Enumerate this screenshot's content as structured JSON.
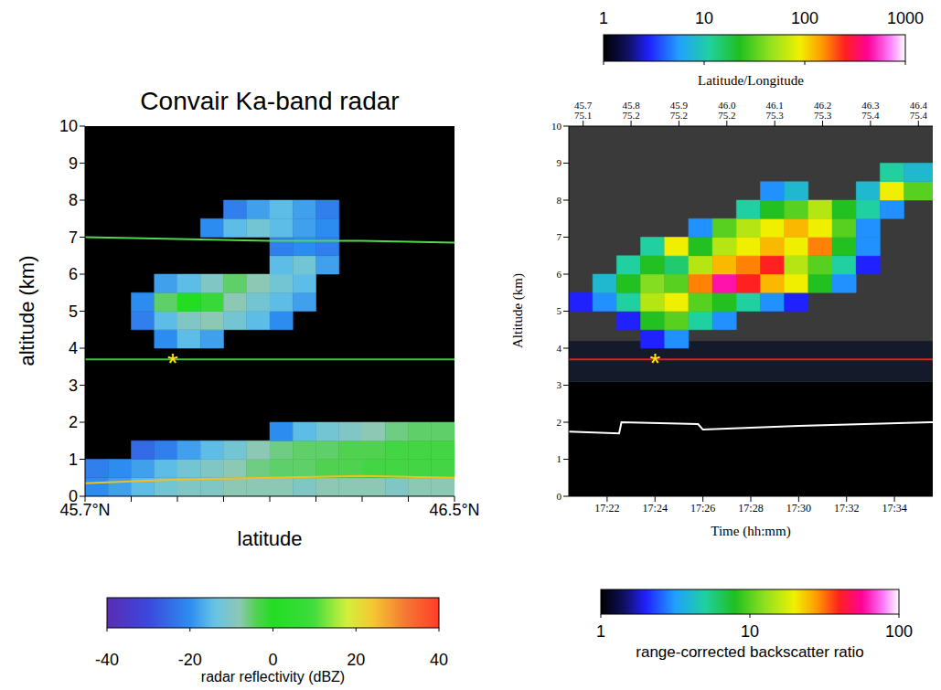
{
  "chart_data": [
    {
      "type": "heatmap",
      "title": "Convair Ka-band radar",
      "x_label": "latitude",
      "y_label": "altitude (km)",
      "xlim": [
        45.7,
        46.5
      ],
      "xticks": [
        {
          "value": 45.7,
          "label": "45.7°N"
        },
        {
          "value": 46.5,
          "label": "46.5°N"
        }
      ],
      "minor_xticks": [
        45.8,
        45.9,
        46.0,
        46.1,
        46.2,
        46.3,
        46.4
      ],
      "ylim": [
        0,
        10
      ],
      "yticks": [
        0,
        1,
        2,
        3,
        4,
        5,
        6,
        7,
        8,
        9,
        10
      ],
      "x_edges": [
        45.7,
        45.75,
        45.8,
        45.85,
        45.9,
        45.95,
        46.0,
        46.05,
        46.1,
        46.15,
        46.2,
        46.25,
        46.3,
        46.35,
        46.4,
        46.45,
        46.5
      ],
      "y_edges": [
        0,
        0.5,
        1,
        1.5,
        2,
        2.5,
        3,
        3.5,
        4,
        4.5,
        5,
        5.5,
        6,
        6.5,
        7,
        7.5,
        8,
        8.5,
        9,
        9.5,
        10
      ],
      "z": [
        [
          -20,
          -18,
          -15,
          -12,
          -10,
          -10,
          -8,
          -8,
          -8,
          -10,
          -8,
          -8,
          -8,
          -10,
          -8,
          -8
        ],
        [
          -22,
          -20,
          -18,
          -15,
          -12,
          -10,
          -8,
          -6,
          -5,
          -5,
          -4,
          -4,
          -3,
          -3,
          -3,
          -3
        ],
        [
          null,
          null,
          -25,
          -22,
          -18,
          -15,
          -12,
          -8,
          -6,
          -5,
          -5,
          -4,
          -4,
          -3,
          -3,
          -3
        ],
        [
          null,
          null,
          null,
          null,
          null,
          null,
          null,
          null,
          -20,
          -15,
          -12,
          -10,
          -8,
          -6,
          -5,
          -5
        ],
        [
          null,
          null,
          null,
          null,
          null,
          null,
          null,
          null,
          null,
          null,
          null,
          null,
          null,
          null,
          null,
          null
        ],
        [
          null,
          null,
          null,
          null,
          null,
          null,
          null,
          null,
          null,
          null,
          null,
          null,
          null,
          null,
          null,
          null
        ],
        [
          null,
          null,
          null,
          null,
          null,
          null,
          null,
          null,
          null,
          null,
          null,
          null,
          null,
          null,
          null,
          null
        ],
        [
          null,
          null,
          null,
          null,
          null,
          null,
          null,
          null,
          null,
          null,
          null,
          null,
          null,
          null,
          null,
          null
        ],
        [
          null,
          null,
          null,
          -20,
          -15,
          -18,
          null,
          null,
          null,
          null,
          null,
          null,
          null,
          null,
          null,
          null
        ],
        [
          null,
          null,
          -22,
          -15,
          -10,
          -8,
          -12,
          -15,
          -20,
          null,
          null,
          null,
          null,
          null,
          null,
          null
        ],
        [
          null,
          null,
          -20,
          -5,
          0,
          -2,
          -8,
          -12,
          -15,
          -18,
          null,
          null,
          null,
          null,
          null,
          null
        ],
        [
          null,
          null,
          null,
          -18,
          -15,
          -10,
          -5,
          -8,
          -12,
          -15,
          null,
          null,
          null,
          null,
          null,
          null
        ],
        [
          null,
          null,
          null,
          null,
          null,
          null,
          null,
          null,
          -15,
          -12,
          -18,
          null,
          null,
          null,
          null,
          null
        ],
        [
          null,
          null,
          null,
          null,
          null,
          null,
          null,
          null,
          -22,
          -20,
          -22,
          null,
          null,
          null,
          null,
          null
        ],
        [
          null,
          null,
          null,
          null,
          null,
          -20,
          -15,
          -12,
          -15,
          -18,
          -20,
          null,
          null,
          null,
          null,
          null
        ],
        [
          null,
          null,
          null,
          null,
          null,
          null,
          -22,
          -18,
          -15,
          -18,
          -22,
          null,
          null,
          null,
          null,
          null
        ],
        [
          null,
          null,
          null,
          null,
          null,
          null,
          null,
          null,
          null,
          null,
          null,
          null,
          null,
          null,
          null,
          null
        ],
        [
          null,
          null,
          null,
          null,
          null,
          null,
          null,
          null,
          null,
          null,
          null,
          null,
          null,
          null,
          null,
          null
        ],
        [
          null,
          null,
          null,
          null,
          null,
          null,
          null,
          null,
          null,
          null,
          null,
          null,
          null,
          null,
          null,
          null
        ],
        [
          null,
          null,
          null,
          null,
          null,
          null,
          null,
          null,
          null,
          null,
          null,
          null,
          null,
          null,
          null,
          null
        ]
      ],
      "colorbar": {
        "range": [
          -40,
          40
        ],
        "ticks": [
          -40,
          -20,
          0,
          20,
          40
        ],
        "label": "radar reflectivity (dBZ)"
      },
      "lines": [
        {
          "x": [
            45.7,
            46.5
          ],
          "y": [
            3.7,
            3.7
          ],
          "color": "#3cc83c"
        },
        {
          "x": [
            45.7,
            45.9,
            46.1,
            46.3,
            46.5
          ],
          "y": [
            7.0,
            6.95,
            6.9,
            6.9,
            6.85
          ],
          "color": "#50d850"
        },
        {
          "x": [
            45.7,
            45.9,
            46.1,
            46.3,
            46.5
          ],
          "y": [
            0.35,
            0.45,
            0.5,
            0.55,
            0.5
          ],
          "color": "#f0c020"
        }
      ],
      "annotations": [
        {
          "text": "*",
          "x": 45.89,
          "y": 3.65,
          "color": "#ffe600"
        }
      ]
    },
    {
      "type": "heatmap",
      "x_label": "Time (hh:mm)",
      "y_label": "Altitude (km)",
      "x2_label": "Latitude/Longitude",
      "xlim": [
        20.4,
        35.6
      ],
      "xticks": [
        {
          "value": 22,
          "label": "17:22"
        },
        {
          "value": 24,
          "label": "17:24"
        },
        {
          "value": 26,
          "label": "17:26"
        },
        {
          "value": 28,
          "label": "17:28"
        },
        {
          "value": 30,
          "label": "17:30"
        },
        {
          "value": 32,
          "label": "17:32"
        },
        {
          "value": 34,
          "label": "17:34"
        }
      ],
      "x2ticks": [
        {
          "value": 21,
          "label": "45.7\n75.1"
        },
        {
          "value": 23,
          "label": "45.8\n75.2"
        },
        {
          "value": 25,
          "label": "45.9\n75.2"
        },
        {
          "value": 27,
          "label": "46.0\n75.2"
        },
        {
          "value": 29,
          "label": "46.1\n75.3"
        },
        {
          "value": 31,
          "label": "46.2\n75.3"
        },
        {
          "value": 33,
          "label": "46.3\n75.4"
        },
        {
          "value": 35,
          "label": "46.4\n75.4"
        }
      ],
      "ylim": [
        0,
        10
      ],
      "yticks": [
        0,
        1,
        2,
        3,
        4,
        5,
        6,
        7,
        8,
        9,
        10
      ],
      "bands": [
        {
          "y": [
            0,
            3.1
          ],
          "color": "#000000"
        },
        {
          "y": [
            3.1,
            4.2
          ],
          "color": "#141a2a"
        },
        {
          "y": [
            4.2,
            10
          ],
          "color": "#3a3a3a"
        }
      ],
      "x_edges": [
        20.4,
        21.4,
        22.4,
        23.4,
        24.4,
        25.4,
        26.4,
        27.4,
        28.4,
        29.4,
        30.4,
        31.4,
        32.4,
        33.4,
        34.4,
        35.6
      ],
      "y_edges": [
        0,
        0.5,
        1,
        1.5,
        2,
        2.5,
        3,
        3.5,
        4,
        4.5,
        5,
        5.5,
        6,
        6.5,
        7,
        7.5,
        8,
        8.5,
        9,
        9.5,
        10
      ],
      "z": [
        [
          null,
          null,
          null,
          null,
          null,
          null,
          null,
          null,
          null,
          null,
          null,
          null,
          null,
          null,
          null
        ],
        [
          null,
          null,
          null,
          null,
          null,
          null,
          null,
          null,
          null,
          null,
          null,
          null,
          null,
          null,
          null
        ],
        [
          null,
          null,
          null,
          null,
          null,
          null,
          null,
          null,
          null,
          null,
          null,
          null,
          null,
          null,
          null
        ],
        [
          null,
          null,
          null,
          null,
          null,
          null,
          null,
          null,
          null,
          null,
          null,
          null,
          null,
          null,
          null
        ],
        [
          null,
          null,
          null,
          null,
          null,
          null,
          null,
          null,
          null,
          null,
          null,
          null,
          null,
          null,
          null
        ],
        [
          null,
          null,
          null,
          null,
          null,
          null,
          null,
          null,
          null,
          null,
          null,
          null,
          null,
          null,
          null
        ],
        [
          null,
          null,
          null,
          null,
          null,
          null,
          null,
          null,
          null,
          null,
          null,
          null,
          null,
          null,
          null
        ],
        [
          null,
          null,
          null,
          null,
          null,
          null,
          null,
          null,
          null,
          null,
          null,
          null,
          null,
          null,
          null
        ],
        [
          null,
          null,
          null,
          2,
          3,
          null,
          null,
          null,
          null,
          null,
          null,
          null,
          null,
          null,
          null
        ],
        [
          null,
          null,
          2,
          8,
          10,
          5,
          3,
          null,
          null,
          null,
          null,
          null,
          null,
          null,
          null
        ],
        [
          2,
          3,
          5,
          15,
          20,
          10,
          8,
          5,
          3,
          2,
          null,
          null,
          null,
          null,
          null
        ],
        [
          null,
          4,
          8,
          12,
          10,
          30,
          60,
          40,
          25,
          20,
          8,
          3,
          null,
          null,
          null
        ],
        [
          null,
          null,
          5,
          8,
          6,
          15,
          25,
          30,
          40,
          15,
          10,
          5,
          2,
          null,
          null
        ],
        [
          null,
          null,
          null,
          5,
          20,
          8,
          15,
          20,
          25,
          20,
          30,
          8,
          3,
          null,
          null
        ],
        [
          null,
          null,
          null,
          null,
          null,
          3,
          10,
          15,
          20,
          25,
          20,
          10,
          3,
          null,
          null
        ],
        [
          null,
          null,
          null,
          null,
          null,
          null,
          null,
          5,
          8,
          10,
          15,
          8,
          5,
          3,
          null
        ],
        [
          null,
          null,
          null,
          null,
          null,
          null,
          null,
          null,
          3,
          4,
          null,
          null,
          4,
          20,
          10
        ],
        [
          null,
          null,
          null,
          null,
          null,
          null,
          null,
          null,
          null,
          null,
          null,
          null,
          null,
          5,
          4
        ],
        [
          null,
          null,
          null,
          null,
          null,
          null,
          null,
          null,
          null,
          null,
          null,
          null,
          null,
          null,
          null
        ],
        [
          null,
          null,
          null,
          null,
          null,
          null,
          null,
          null,
          null,
          null,
          null,
          null,
          null,
          null,
          null
        ]
      ],
      "colorbar": {
        "range": [
          1,
          100
        ],
        "ticks": [
          1,
          10,
          100
        ],
        "label": "range-corrected backscatter ratio",
        "log": true
      },
      "colorbar_top": {
        "range": [
          1,
          1000
        ],
        "ticks": [
          1,
          10,
          100,
          1000
        ],
        "log": true
      },
      "lines": [
        {
          "x": [
            20.4,
            35.6
          ],
          "y": [
            3.7,
            3.7
          ],
          "color": "#e02020"
        },
        {
          "x": [
            20.4,
            22.5,
            22.6,
            25.8,
            26.0,
            30.0,
            35.6
          ],
          "y": [
            1.75,
            1.7,
            2.0,
            1.95,
            1.8,
            1.9,
            2.0
          ],
          "color": "#ffffff"
        }
      ],
      "annotations": [
        {
          "text": "*",
          "x": 24.0,
          "y": 3.65,
          "color": "#ffe600"
        }
      ]
    }
  ]
}
